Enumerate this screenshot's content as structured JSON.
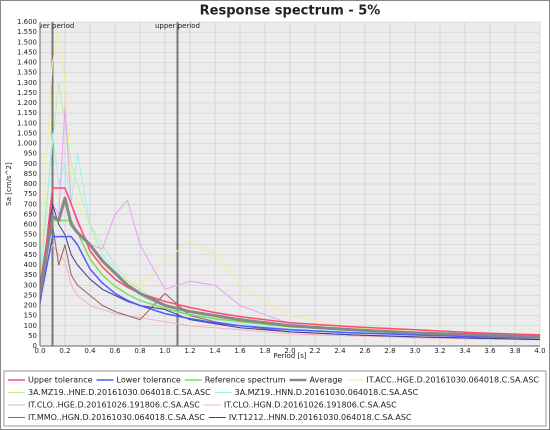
{
  "chart_data": {
    "type": "line",
    "title": "Response spectrum - 5%",
    "x_label": "Period [s]",
    "y_label": "Sa [cm/s^2]",
    "x": [
      0,
      0.05,
      0.1,
      0.15,
      0.2,
      0.25,
      0.3,
      0.4,
      0.5,
      0.6,
      0.7,
      0.8,
      1.0,
      1.2,
      1.4,
      1.6,
      2.0,
      2.5,
      3.0,
      3.5,
      4.0
    ],
    "series": [
      {
        "name": "Upper tolerance",
        "color": "#ff4a6a",
        "width": 1.5,
        "values": [
          300,
          500,
          780,
          780,
          780,
          700,
          620,
          470,
          390,
          330,
          290,
          260,
          220,
          190,
          165,
          145,
          115,
          95,
          80,
          65,
          55
        ]
      },
      {
        "name": "Lower tolerance",
        "color": "#4a5cff",
        "width": 1.5,
        "values": [
          220,
          380,
          540,
          540,
          540,
          540,
          500,
          380,
          310,
          260,
          225,
          200,
          160,
          135,
          115,
          100,
          80,
          65,
          55,
          45,
          40
        ]
      },
      {
        "name": "Reference spectrum",
        "color": "#7fdc5a",
        "width": 1.5,
        "values": [
          260,
          440,
          620,
          620,
          620,
          620,
          560,
          430,
          350,
          295,
          255,
          225,
          185,
          155,
          135,
          120,
          95,
          78,
          65,
          55,
          48
        ]
      },
      {
        "name": "Average",
        "color": "#888888",
        "width": 3,
        "values": [
          250,
          450,
          640,
          620,
          730,
          600,
          560,
          500,
          420,
          360,
          300,
          260,
          200,
          170,
          150,
          130,
          100,
          80,
          65,
          55,
          45
        ]
      },
      {
        "name": "IT.ACC..HGE.D.20161030.064018.C.SA.ASC",
        "color": "#f4ec9a",
        "width": 1,
        "values": [
          300,
          900,
          1400,
          1550,
          1300,
          800,
          700,
          600,
          400,
          350,
          320,
          300,
          420,
          520,
          450,
          300,
          150,
          90,
          70,
          55,
          45
        ]
      },
      {
        "name": "3A.MZ19..HNE.D.20161030.064018.C.SA.ASC",
        "color": "#bfeea0",
        "width": 1,
        "values": [
          350,
          700,
          1000,
          1300,
          1100,
          900,
          800,
          600,
          500,
          400,
          320,
          280,
          200,
          170,
          150,
          130,
          100,
          80,
          65,
          55,
          45
        ]
      },
      {
        "name": "3A.MZ19..HNN.D.20161030.064018.C.SA.ASC",
        "color": "#9ef0ee",
        "width": 1,
        "values": [
          300,
          650,
          1050,
          800,
          900,
          700,
          950,
          600,
          450,
          380,
          300,
          250,
          180,
          150,
          130,
          110,
          85,
          70,
          60,
          50,
          40
        ]
      },
      {
        "name": "IT.CLO..HGE.D.20161026.191806.C.SA.ASC",
        "color": "#e4a2f2",
        "width": 1,
        "values": [
          250,
          500,
          700,
          650,
          1180,
          700,
          600,
          500,
          480,
          650,
          720,
          500,
          280,
          320,
          300,
          200,
          110,
          75,
          60,
          50,
          40
        ]
      },
      {
        "name": "IT.CLO..HGN.D.20161026.191806.C.SA.ASC",
        "color": "#f2b2c4",
        "width": 1,
        "values": [
          200,
          400,
          500,
          450,
          420,
          300,
          250,
          200,
          180,
          160,
          150,
          140,
          120,
          100,
          90,
          80,
          60,
          50,
          40,
          35,
          30
        ]
      },
      {
        "name": "IT.MMO..HGN.D.20161030.064018.C.SA.ASC",
        "color": "#9e5c5c",
        "width": 1,
        "values": [
          200,
          450,
          600,
          400,
          500,
          350,
          300,
          250,
          200,
          170,
          150,
          130,
          260,
          150,
          120,
          100,
          70,
          55,
          45,
          38,
          32
        ]
      },
      {
        "name": "IV.T1212..HNN.D.20161030.064018.C.SA.ASC",
        "color": "#3c3c94",
        "width": 1,
        "values": [
          220,
          500,
          700,
          600,
          550,
          450,
          400,
          330,
          280,
          250,
          220,
          200,
          180,
          130,
          110,
          90,
          70,
          55,
          45,
          38,
          32
        ]
      }
    ],
    "period_lines": [
      {
        "label": "lower period",
        "value": 0.1
      },
      {
        "label": "upper period",
        "value": 1.1
      }
    ],
    "xlim": [
      0,
      4
    ],
    "xticks": [
      {
        "value": 0,
        "label": "0.0"
      },
      0.2,
      0.4,
      0.6,
      0.8,
      {
        "value": 1,
        "label": "1.0"
      },
      1.2,
      1.4,
      1.6,
      1.8,
      {
        "value": 2,
        "label": "2.0"
      },
      2.2,
      2.4,
      2.6,
      2.8,
      {
        "value": 3,
        "label": "3.0"
      },
      3.2,
      3.4,
      3.6,
      3.8,
      {
        "value": 4,
        "label": "4.0"
      }
    ],
    "ylim": [
      0,
      1600
    ],
    "yticks": [
      0,
      50,
      100,
      150,
      200,
      250,
      300,
      350,
      400,
      450,
      500,
      550,
      600,
      650,
      700,
      750,
      800,
      850,
      900,
      950,
      {
        "value": 1000,
        "label": "1.000"
      },
      {
        "value": 1050,
        "label": "1.050"
      },
      {
        "value": 1100,
        "label": "1.100"
      },
      {
        "value": 1150,
        "label": "1.150"
      },
      {
        "value": 1200,
        "label": "1.200"
      },
      {
        "value": 1250,
        "label": "1.250"
      },
      {
        "value": 1300,
        "label": "1.300"
      },
      {
        "value": 1350,
        "label": "1.350"
      },
      {
        "value": 1400,
        "label": "1.400"
      },
      {
        "value": 1450,
        "label": "1.450"
      },
      {
        "value": 1500,
        "label": "1.500"
      },
      {
        "value": 1550,
        "label": "1.550"
      },
      {
        "value": 1600,
        "label": "1.600"
      }
    ],
    "grid": true
  }
}
